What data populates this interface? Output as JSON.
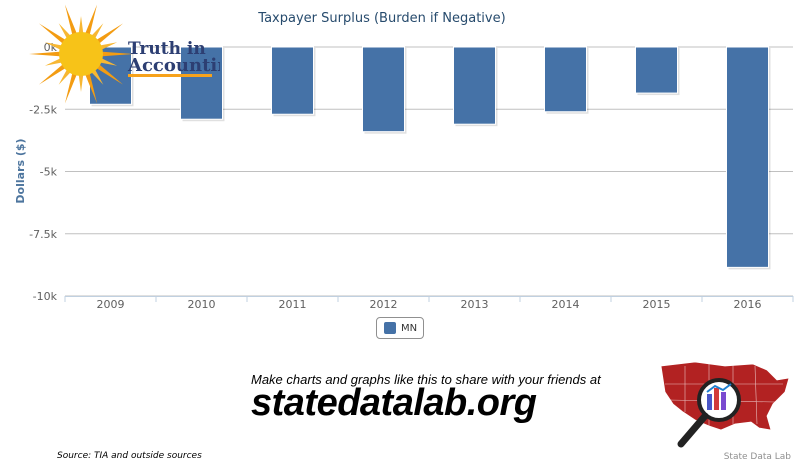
{
  "chart_data": {
    "type": "bar",
    "title": "Taxpayer Surplus (Burden if Negative)",
    "ylabel": "Dollars ($)",
    "xlabel": "",
    "categories": [
      "2009",
      "2010",
      "2011",
      "2012",
      "2013",
      "2014",
      "2015",
      "2016"
    ],
    "series": [
      {
        "name": "MN",
        "color": "#4572a7",
        "values": [
          -2300,
          -2900,
          -2700,
          -3400,
          -3100,
          -2600,
          -1850,
          -8850
        ]
      }
    ],
    "ylim": [
      -10000,
      0
    ],
    "yticks": [
      0,
      -2500,
      -5000,
      -7500,
      -10000
    ],
    "ytick_labels": [
      "0k",
      "-2.5k",
      "-5k",
      "-7.5k",
      "-10k"
    ],
    "grid": true,
    "legend_position": "bottom-center"
  },
  "legend": {
    "label": "MN",
    "color": "#4572a7"
  },
  "footer": {
    "tia_logo_text_1": "Truth in",
    "tia_logo_text_2": "Accounting",
    "source": "Source: TIA and outside sources",
    "promo": "Make charts and graphs like this to share with your friends at",
    "url": "statedatalab.org",
    "credit": "State Data Lab"
  }
}
